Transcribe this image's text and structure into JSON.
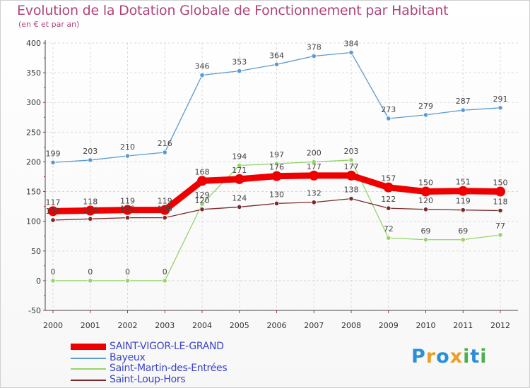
{
  "title": "Evolution de la Dotation Globale de Fonctionnement par Habitant",
  "subtitle": "(en € et par an)",
  "logo": {
    "text": "Proxiti",
    "letters": [
      "P",
      "r",
      "o",
      "x",
      "i",
      "t",
      "i"
    ],
    "colors": [
      "#2a8fd6",
      "#e9a02a",
      "#2a8fd6",
      "#e9a02a",
      "#4cae4c",
      "#2a8fd6",
      "#4cae4c"
    ]
  },
  "chart_data": {
    "type": "line",
    "title": "Evolution de la Dotation Globale de Fonctionnement par Habitant",
    "ylabel": "(en € et par an)",
    "xlabel": "",
    "ylim": [
      -50,
      400
    ],
    "yticks": [
      -50,
      0,
      50,
      100,
      150,
      200,
      250,
      300,
      350,
      400
    ],
    "categories": [
      "2000",
      "2001",
      "2002",
      "2003",
      "2004",
      "2005",
      "2006",
      "2007",
      "2008",
      "2009",
      "2010",
      "2011",
      "2012"
    ],
    "grid": true,
    "series": [
      {
        "name": "SAINT-VIGOR-LE-GRAND",
        "color": "#ee0000",
        "thick": true,
        "values": [
          117,
          118,
          119,
          119,
          168,
          171,
          176,
          177,
          177,
          157,
          150,
          151,
          150
        ]
      },
      {
        "name": "Bayeux",
        "color": "#5b9bd0",
        "thick": false,
        "values": [
          199,
          203,
          210,
          216,
          346,
          353,
          364,
          378,
          384,
          273,
          279,
          287,
          291
        ]
      },
      {
        "name": "Saint-Martin-des-Entrées",
        "color": "#96d46a",
        "thick": false,
        "values": [
          0,
          0,
          0,
          0,
          129,
          194,
          197,
          200,
          203,
          72,
          69,
          69,
          77
        ]
      },
      {
        "name": "Saint-Loup-Hors",
        "color": "#7a2a2a",
        "thick": false,
        "values": [
          102,
          104,
          106,
          106,
          120,
          124,
          130,
          132,
          138,
          122,
          120,
          119,
          118
        ]
      }
    ]
  }
}
